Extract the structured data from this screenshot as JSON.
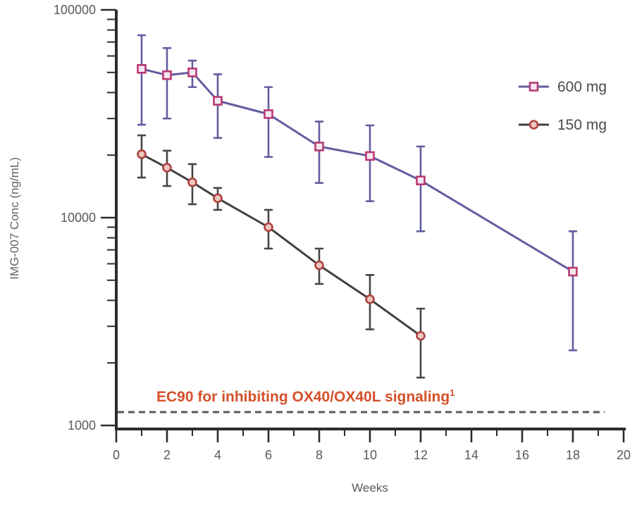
{
  "figure": {
    "background": "#ffffff"
  },
  "chart_data": {
    "type": "line",
    "title": "",
    "xlabel": "Weeks",
    "ylabel": "IMG-007 Conc (ng/mL)",
    "grid": false,
    "x_axis": {
      "min": 0,
      "max": 20,
      "major_ticks": [
        0,
        2,
        4,
        6,
        8,
        10,
        12,
        14,
        16,
        18,
        20
      ],
      "minor_ticks": [
        1,
        3,
        5,
        7,
        9,
        11,
        13,
        15,
        17,
        19
      ]
    },
    "y_axis": {
      "scale": "log",
      "min": 1000,
      "max": 100000,
      "major_ticks": [
        1000,
        10000,
        100000
      ],
      "tick_labels": [
        "1000",
        "10000",
        "100000"
      ]
    },
    "legend": {
      "position": "top-right",
      "entries": [
        "600 mg",
        "150 mg"
      ]
    },
    "series": [
      {
        "name": "600 mg",
        "marker": "square",
        "line_color": "#615d9f",
        "marker_color": "#b93a74",
        "marker_fill": "#f6e8f1",
        "error_color": "#615d9f",
        "x": [
          1,
          2,
          3,
          4,
          6,
          8,
          10,
          12,
          18
        ],
        "y": [
          52000,
          48500,
          50000,
          36500,
          31500,
          22000,
          19800,
          15100,
          5500
        ],
        "y_err_high": [
          75500,
          65500,
          57000,
          49000,
          42500,
          29000,
          27800,
          22000,
          8600
        ],
        "y_err_low": [
          28000,
          30000,
          42500,
          24200,
          19600,
          14700,
          12000,
          8600,
          2300
        ]
      },
      {
        "name": "150 mg",
        "marker": "circle",
        "line_color": "#45403d",
        "marker_color": "#ad4240",
        "marker_fill": "#ecc6bf",
        "error_color": "#4a4542",
        "x": [
          1,
          2,
          3,
          4,
          6,
          8,
          10,
          12
        ],
        "y": [
          20200,
          17400,
          14800,
          12400,
          9000,
          5900,
          4050,
          2700
        ],
        "y_err_high": [
          24900,
          21000,
          18100,
          13900,
          10900,
          7100,
          5300,
          3650
        ],
        "y_err_low": [
          15600,
          14200,
          11600,
          10900,
          7100,
          4800,
          2900,
          1700
        ]
      }
    ],
    "threshold": {
      "value": 1160,
      "label": "EC90 for inhibiting OX40/OX40L signaling",
      "label_superscript": "1",
      "line_color": "#595959",
      "label_color": "#d4502a",
      "style": "dashed"
    },
    "colors": {
      "axis": "#2e2c2b",
      "tick_label": "#595959",
      "axis_title": "#666666",
      "legend_text": "#4a4a4a"
    }
  }
}
